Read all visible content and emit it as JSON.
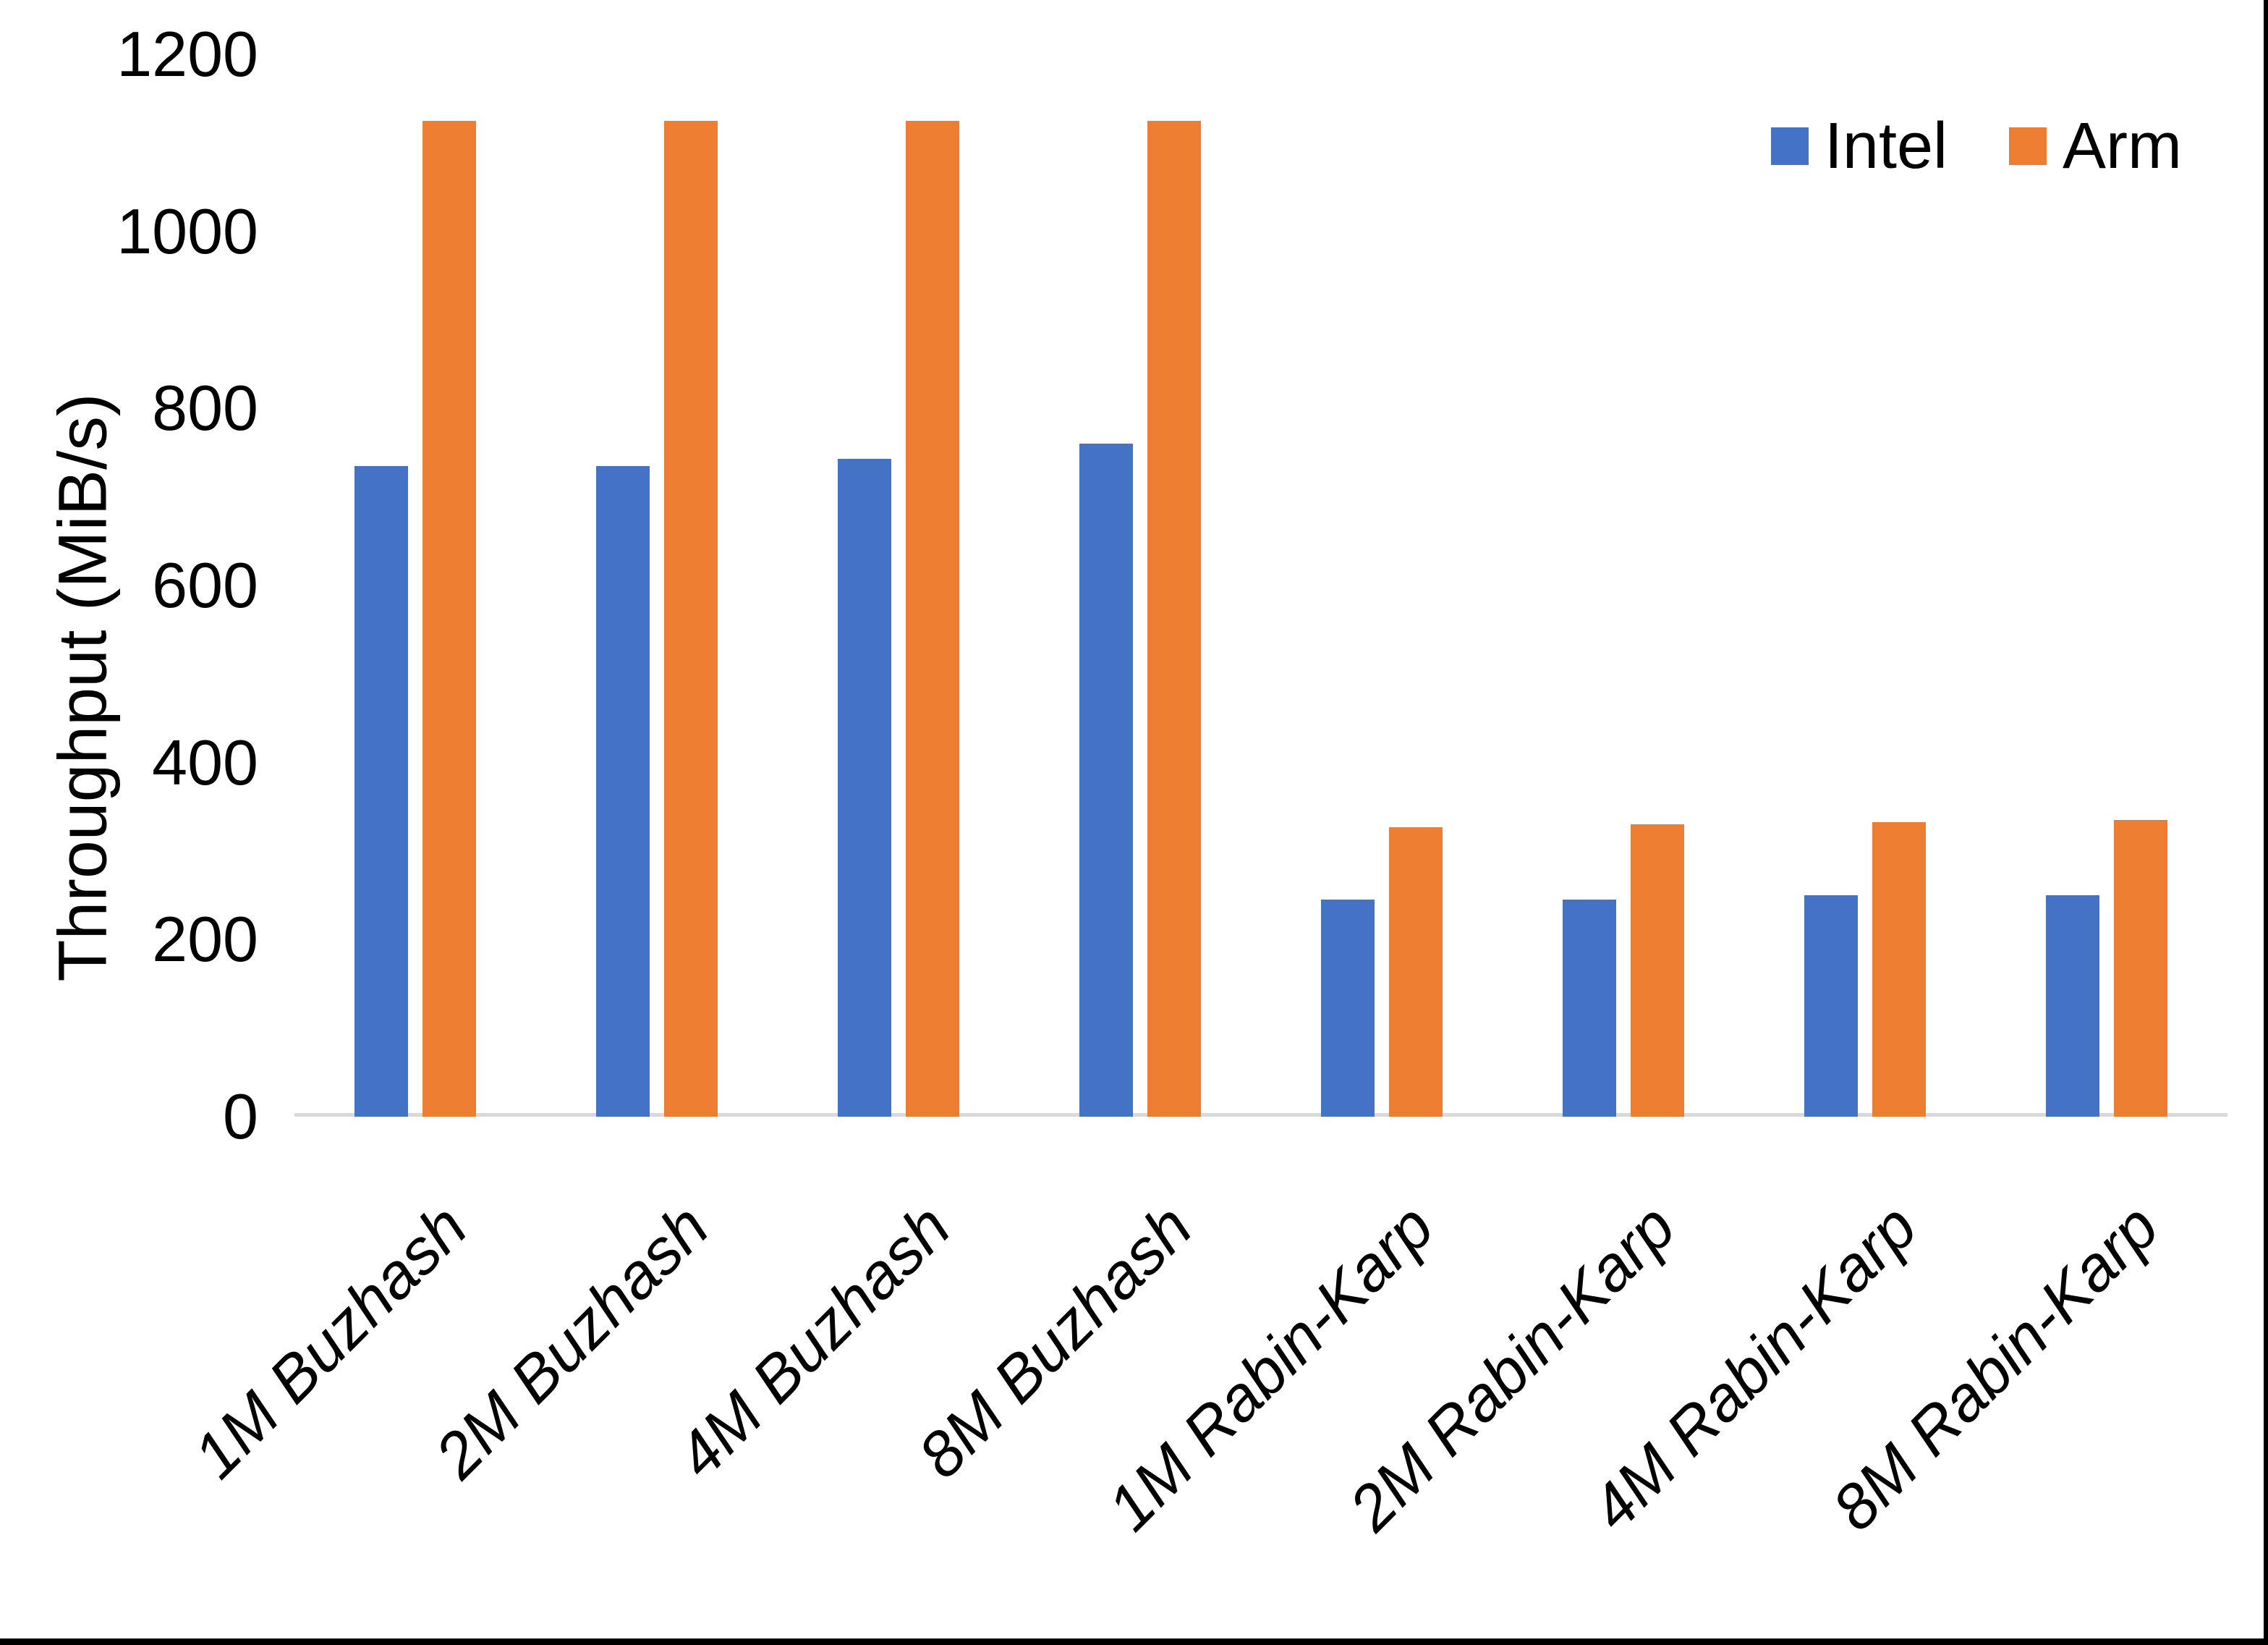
{
  "page": {
    "background": "#FFFFFF",
    "frame_border_color": "#000000"
  },
  "chart_data": {
    "type": "bar",
    "title": "",
    "xlabel": "",
    "ylabel": "Throughput (MiB/s)",
    "ylim": [
      0,
      1200
    ],
    "yticks": [
      0,
      200,
      400,
      600,
      800,
      1000,
      1200
    ],
    "grid": false,
    "legend_position": "top-right",
    "axis_line_color": "#D9D9D9",
    "text_color": "#000000",
    "categories": [
      "1M Buzhash",
      "2M Buzhash",
      "4M Buzhash",
      "8M Buzhash",
      "1M Rabin-Karp",
      "2M Rabin-Karp",
      "4M Rabin-Karp",
      "8M Rabin-Karp"
    ],
    "series": [
      {
        "name": "Intel",
        "color": "#4472C4",
        "values": [
          735,
          735,
          743,
          760,
          245,
          245,
          250,
          250
        ]
      },
      {
        "name": "Arm",
        "color": "#ED7D31",
        "values": [
          1125,
          1125,
          1125,
          1125,
          327,
          330,
          333,
          335
        ]
      }
    ]
  }
}
